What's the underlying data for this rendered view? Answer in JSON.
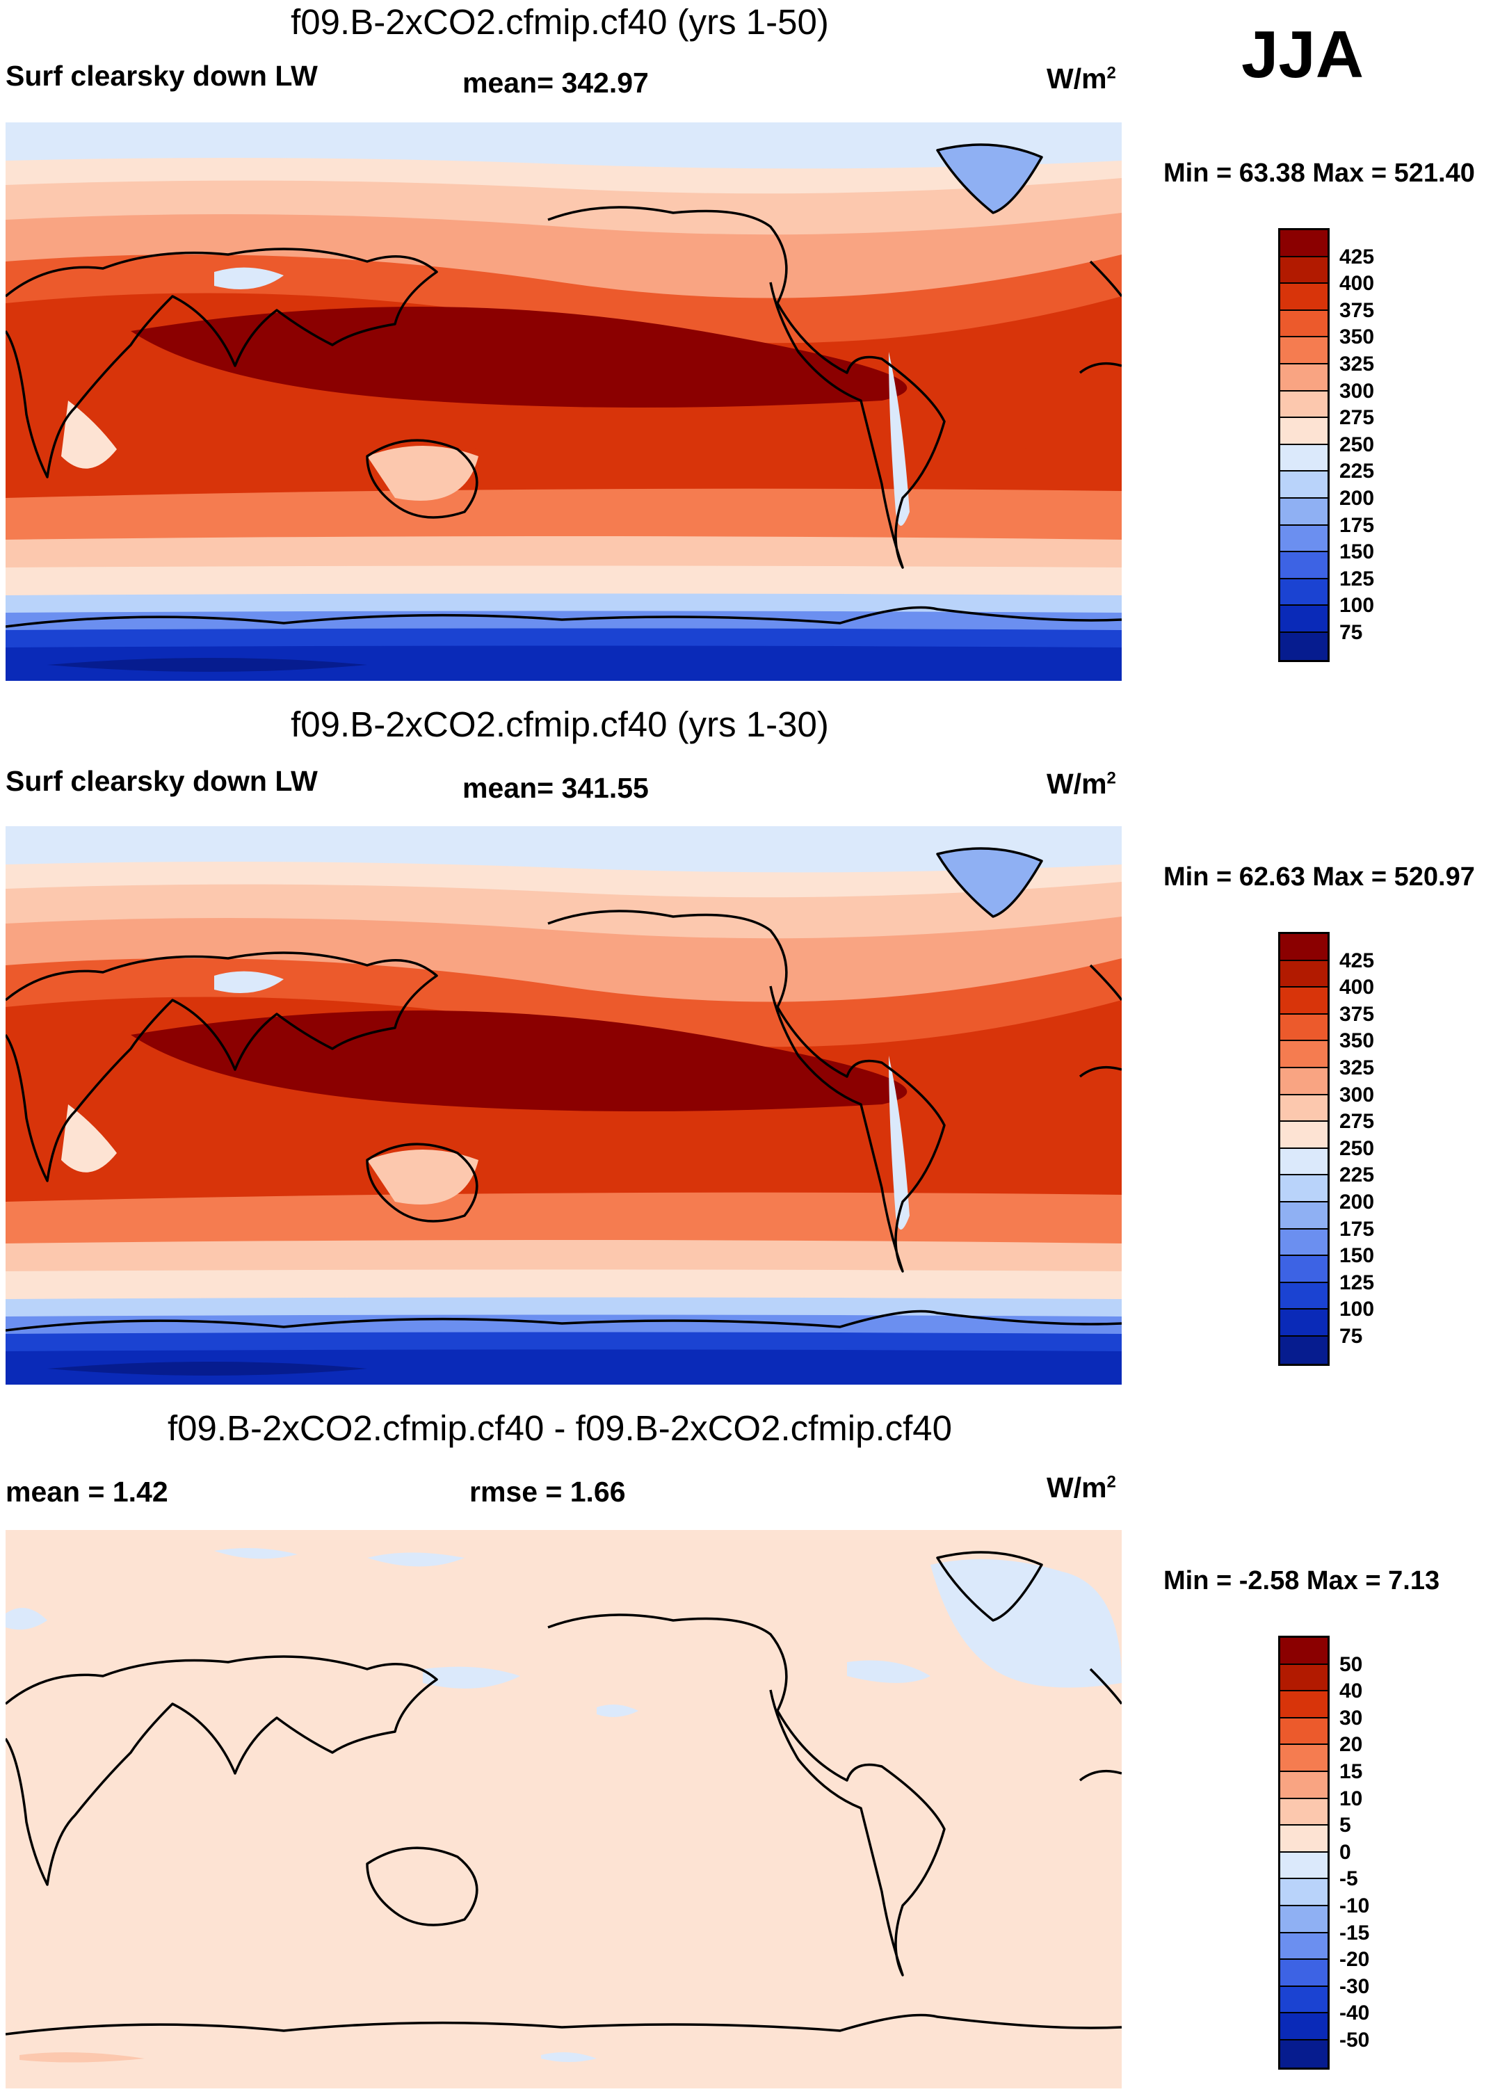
{
  "season": "JJA",
  "units": "W/m",
  "units_exp": "2",
  "colors": {
    "abs": [
      "#8b0000",
      "#b21a00",
      "#d8340a",
      "#ec5a2c",
      "#f57c50",
      "#f9a482",
      "#fcc8ae",
      "#fde3d3",
      "#dbe9fb",
      "#b9d3fa",
      "#8fb0f3",
      "#6b8ff0",
      "#3d63e4",
      "#1b43d2",
      "#0a2ab8",
      "#061c8f"
    ],
    "diff": [
      "#8b0000",
      "#b21a00",
      "#d8340a",
      "#ec5a2c",
      "#f57c50",
      "#f9a482",
      "#fcc8ae",
      "#fde3d3",
      "#dbe9fb",
      "#b9d3fa",
      "#8fb0f3",
      "#6b8ff0",
      "#3d63e4",
      "#1b43d2",
      "#0a2ab8",
      "#061c8f"
    ]
  },
  "panels": [
    {
      "title": "f09.B-2xCO2.cfmip.cf40 (yrs 1-50)",
      "variable": "Surf clearsky down LW",
      "stat": "mean= 342.97",
      "minmax": "Min =  63.38 Max = 521.40",
      "levels": [
        "425",
        "400",
        "375",
        "350",
        "325",
        "300",
        "275",
        "250",
        "225",
        "200",
        "175",
        "150",
        "125",
        "100",
        "75"
      ]
    },
    {
      "title": "f09.B-2xCO2.cfmip.cf40 (yrs 1-30)",
      "variable": "Surf clearsky down LW",
      "stat": "mean= 341.55",
      "minmax": "Min =  62.63 Max = 520.97",
      "levels": [
        "425",
        "400",
        "375",
        "350",
        "325",
        "300",
        "275",
        "250",
        "225",
        "200",
        "175",
        "150",
        "125",
        "100",
        "75"
      ]
    },
    {
      "title": "f09.B-2xCO2.cfmip.cf40 - f09.B-2xCO2.cfmip.cf40",
      "variable": "mean =   1.42",
      "stat": "rmse =   1.66",
      "minmax": "Min =  -2.58 Max =   7.13",
      "levels": [
        "50",
        "40",
        "30",
        "20",
        "15",
        "10",
        "5",
        "0",
        "-5",
        "-10",
        "-15",
        "-20",
        "-30",
        "-40",
        "-50"
      ]
    }
  ]
}
